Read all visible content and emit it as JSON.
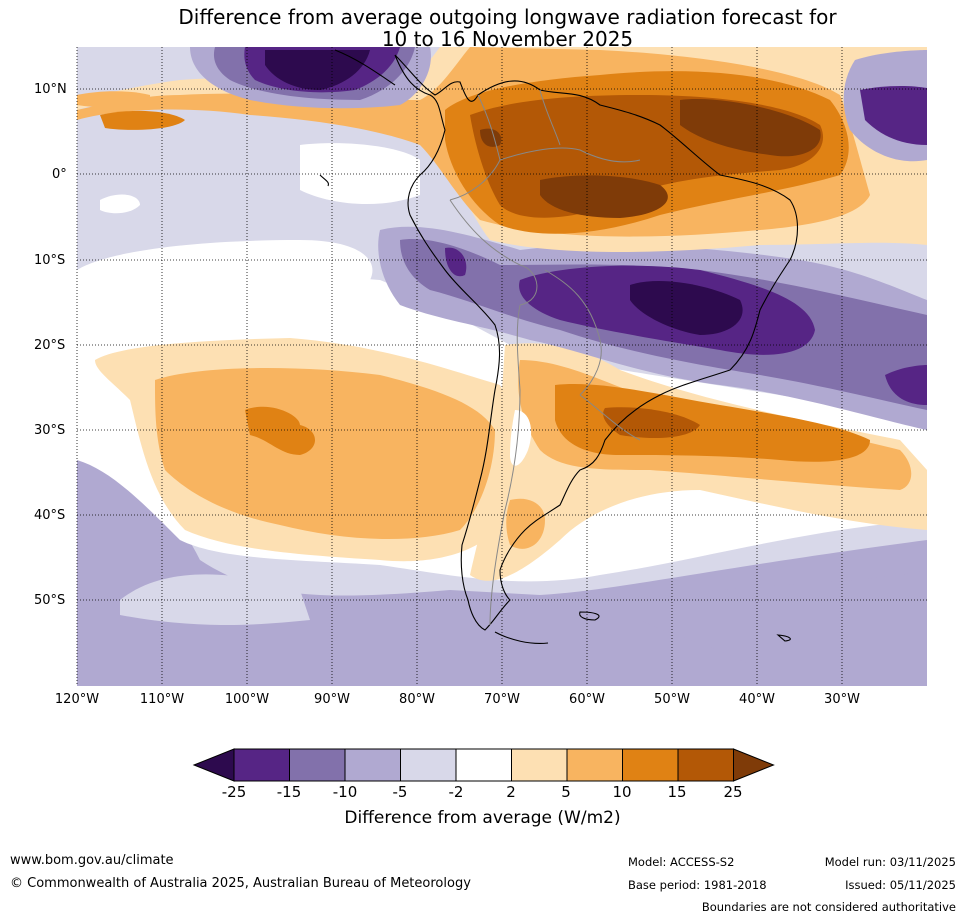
{
  "title_line1": "Difference from average outgoing longwave radiation forecast for",
  "title_line2": "10 to 16 November 2025",
  "lat_labels": [
    "10°N",
    "0°",
    "10°S",
    "20°S",
    "30°S",
    "40°S",
    "50°S"
  ],
  "lon_labels": [
    "120°W",
    "110°W",
    "100°W",
    "90°W",
    "80°W",
    "70°W",
    "60°W",
    "50°W",
    "40°W",
    "30°W"
  ],
  "colorbar": {
    "boundaries": [
      "-25",
      "-15",
      "-10",
      "-5",
      "-2",
      "2",
      "5",
      "10",
      "15",
      "25"
    ],
    "colors": [
      "#2d0a4e",
      "#562585",
      "#8271ab",
      "#b0a9d1",
      "#d8d8e9",
      "#ffffff",
      "#fde0b3",
      "#f8b460",
      "#e08214",
      "#b35806",
      "#7f3b08"
    ],
    "title": "Difference from average (W/m2)"
  },
  "footer": {
    "website": "www.bom.gov.au/climate",
    "copyright": "© Commonwealth of Australia 2025, Australian Bureau of Meteorology",
    "model": "Model: ACCESS-S2",
    "base_period": "Base period: 1981-2018",
    "model_run": "Model run: 03/11/2025",
    "issued": "Issued: 05/11/2025",
    "disclaimer": "Boundaries are not considered authoritative"
  }
}
